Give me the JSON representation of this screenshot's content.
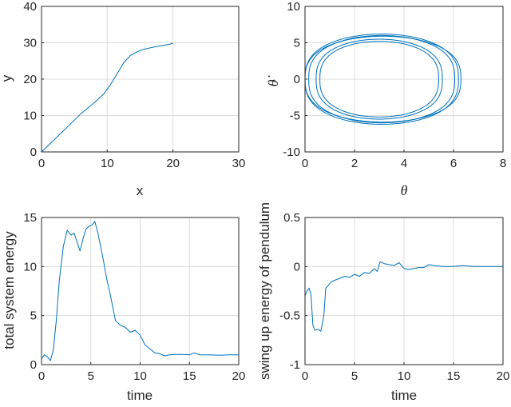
{
  "chart_data": [
    {
      "type": "line",
      "xlabel": "x",
      "ylabel": "y",
      "xlim": [
        0,
        30
      ],
      "ylim": [
        0,
        40
      ],
      "xticks": [
        "0",
        "10",
        "20",
        "30"
      ],
      "yticks": [
        "0",
        "10",
        "20",
        "30",
        "40"
      ],
      "grid": true,
      "series": [
        {
          "x": [
            0,
            2,
            4,
            6,
            8,
            9.5,
            10.5,
            11.5,
            12.5,
            13.5,
            14.5,
            15.5,
            16.5,
            17.5,
            18.5,
            19.5,
            20
          ],
          "y": [
            0,
            3.5,
            7,
            10.5,
            13.5,
            16,
            18.5,
            21.5,
            24.5,
            26.5,
            27.5,
            28.2,
            28.6,
            29,
            29.3,
            29.6,
            29.9
          ]
        }
      ]
    },
    {
      "type": "line",
      "xlabel": "θ",
      "ylabel": "θ̇",
      "xlim": [
        0,
        8
      ],
      "ylim": [
        -10,
        10
      ],
      "xticks": [
        "0",
        "2",
        "4",
        "6",
        "8"
      ],
      "yticks": [
        "-10",
        "-5",
        "0",
        "5",
        "10"
      ],
      "grid": true,
      "series": [
        {
          "cx": 3.1,
          "halfwidth": 3.1,
          "amp": 6.2
        },
        {
          "cx": 3.1,
          "halfwidth": 2.95,
          "amp": 6.0
        },
        {
          "cx": 3.0,
          "halfwidth": 2.4,
          "amp": 5.2
        },
        {
          "cx": 3.0,
          "halfwidth": 2.55,
          "amp": 5.5
        },
        {
          "cx": 3.15,
          "halfwidth": 3.15,
          "amp": 5.9
        }
      ]
    },
    {
      "type": "line",
      "xlabel": "time",
      "ylabel": "total system energy",
      "xlim": [
        0,
        20
      ],
      "ylim": [
        0,
        15
      ],
      "xticks": [
        "0",
        "5",
        "10",
        "15",
        "20"
      ],
      "yticks": [
        "0",
        "5",
        "10",
        "15"
      ],
      "grid": true,
      "series": [
        {
          "x": [
            0,
            0.3,
            0.6,
            0.9,
            1.2,
            1.5,
            1.8,
            2.2,
            2.6,
            3.0,
            3.3,
            3.6,
            3.9,
            4.2,
            4.5,
            4.8,
            5.1,
            5.4,
            5.7,
            6.0,
            6.3,
            6.6,
            6.9,
            7.2,
            7.5,
            8.0,
            8.5,
            9.0,
            9.5,
            10.0,
            10.5,
            11.0,
            11.5,
            12.0,
            12.5,
            13.0,
            14.0,
            15.0,
            15.5,
            16.0,
            17.0,
            18.0,
            19.0,
            20.0
          ],
          "y": [
            0.6,
            1.0,
            0.8,
            0.4,
            1.5,
            4.5,
            8.5,
            12.0,
            13.7,
            13.2,
            13.4,
            12.5,
            11.6,
            12.8,
            13.8,
            14.1,
            14.2,
            14.6,
            13.5,
            12.0,
            10.5,
            8.8,
            7.5,
            6.0,
            4.5,
            4.0,
            3.8,
            3.3,
            3.5,
            3.0,
            2.0,
            1.6,
            1.2,
            1.1,
            0.9,
            1.0,
            1.05,
            1.0,
            1.2,
            1.0,
            1.0,
            0.95,
            1.0,
            1.0
          ]
        }
      ]
    },
    {
      "type": "line",
      "xlabel": "time",
      "ylabel": "swing up energy of pendulum",
      "xlim": [
        0,
        20
      ],
      "ylim": [
        -1,
        0.5
      ],
      "xticks": [
        "0",
        "5",
        "10",
        "15",
        "20"
      ],
      "yticks": [
        "-1",
        "-0.5",
        "0",
        "0.5"
      ],
      "grid": true,
      "series": [
        {
          "x": [
            0,
            0.2,
            0.4,
            0.6,
            0.8,
            1.0,
            1.3,
            1.6,
            1.9,
            2.1,
            2.3,
            2.6,
            3.0,
            3.5,
            4.0,
            4.5,
            5.0,
            5.5,
            6.0,
            6.5,
            7.0,
            7.3,
            7.6,
            8.0,
            8.5,
            9.0,
            9.5,
            10.0,
            10.5,
            11.0,
            11.5,
            12.0,
            12.5,
            13.0,
            14.0,
            15.0,
            16.0,
            17.0,
            18.0,
            19.0,
            20.0
          ],
          "y": [
            -0.3,
            -0.25,
            -0.22,
            -0.28,
            -0.6,
            -0.65,
            -0.64,
            -0.66,
            -0.5,
            -0.22,
            -0.2,
            -0.16,
            -0.14,
            -0.12,
            -0.1,
            -0.11,
            -0.08,
            -0.1,
            -0.06,
            -0.07,
            -0.02,
            -0.05,
            0.05,
            0.03,
            0.02,
            0.01,
            0.04,
            -0.02,
            -0.03,
            -0.02,
            -0.01,
            -0.01,
            0.02,
            0.01,
            0.0,
            0.0,
            0.01,
            0.0,
            0.0,
            0.0,
            0.0
          ]
        }
      ]
    }
  ]
}
